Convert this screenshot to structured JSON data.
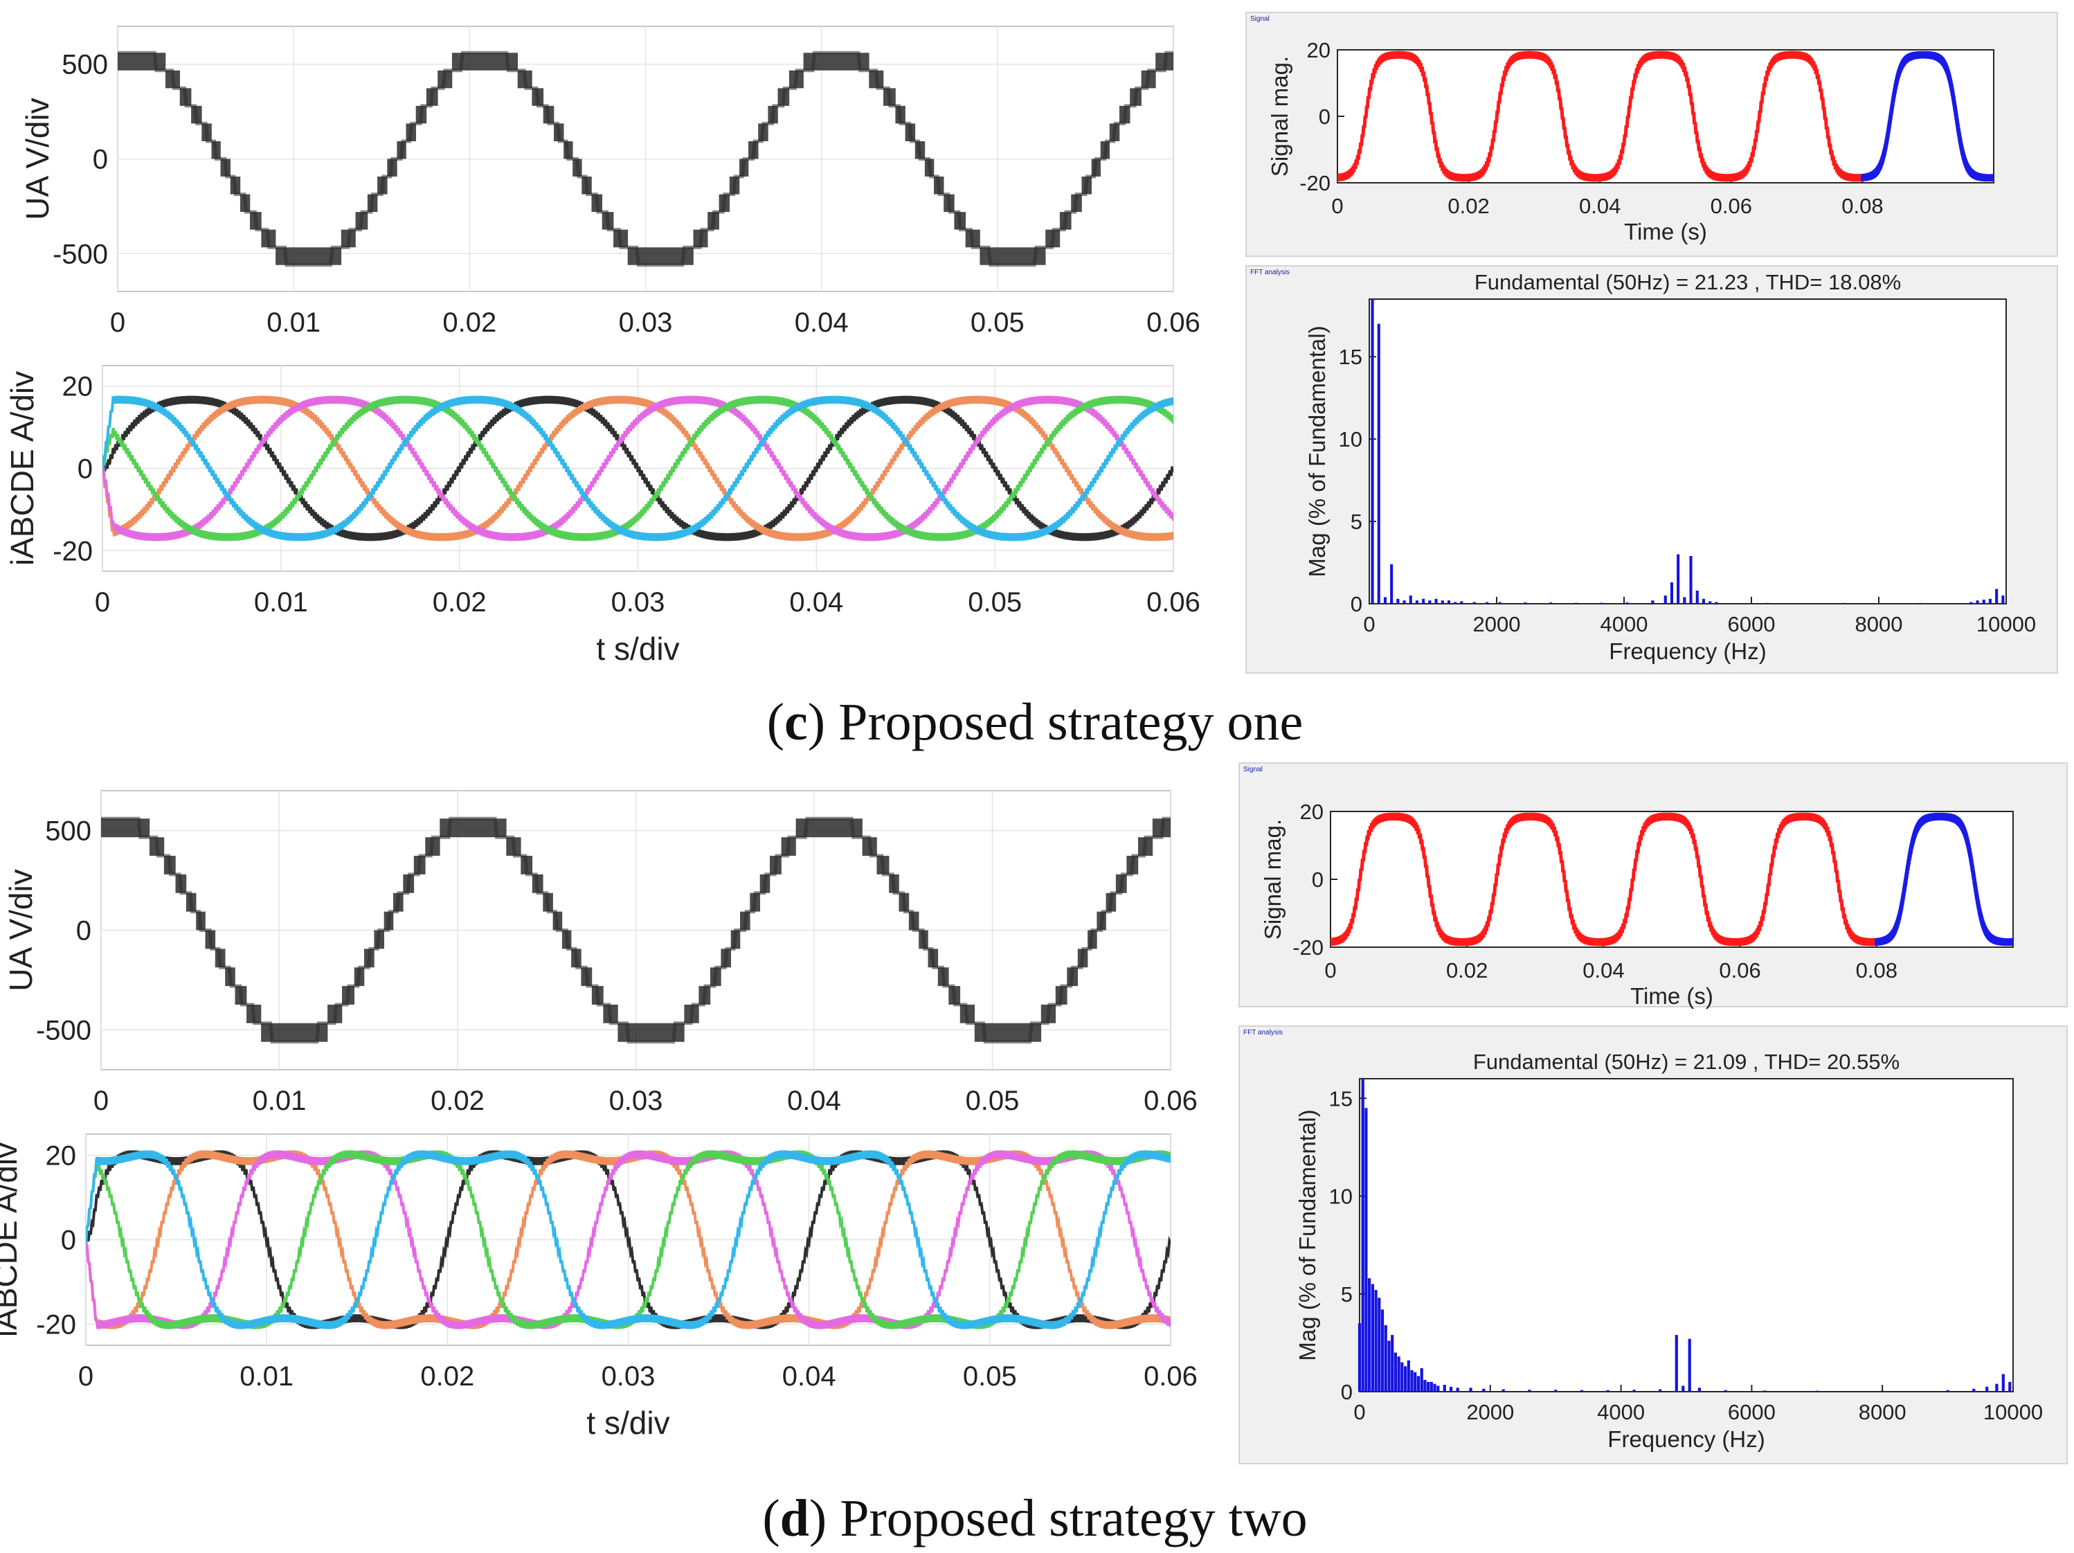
{
  "captions": [
    {
      "letter": "c",
      "text": " Proposed strategy one"
    },
    {
      "letter": "d",
      "text": " Proposed strategy two"
    }
  ],
  "chart_data": [
    {
      "type": "line",
      "panel": "c-voltage",
      "ylabel": "UA V/div",
      "xlim": [
        0,
        0.06
      ],
      "ylim": [
        -700,
        700
      ],
      "xticks": [
        "0",
        "0.01",
        "0.02",
        "0.03",
        "0.04",
        "0.05",
        "0.06"
      ],
      "yticks": [
        "500",
        "0",
        "-500"
      ],
      "yticks_values": [
        500,
        0,
        -500
      ],
      "series": [
        {
          "name": "UA",
          "color": "#2b2b2b",
          "amplitude": 560,
          "frequency_hz": 50,
          "levels": 6,
          "phase_start": 1.3
        }
      ]
    },
    {
      "type": "line",
      "panel": "c-currents",
      "ylabel": "iABCDE A/div",
      "xlabel": "t s/div",
      "xlim": [
        0,
        0.06
      ],
      "ylim": [
        -25,
        25
      ],
      "xticks": [
        "0",
        "0.01",
        "0.02",
        "0.03",
        "0.04",
        "0.05",
        "0.06"
      ],
      "yticks": [
        "20",
        "0",
        "-20"
      ],
      "yticks_values": [
        20,
        0,
        -20
      ],
      "series": [
        {
          "name": "iA",
          "color": "#303030",
          "amplitude": 18,
          "frequency_hz": 50,
          "phase_deg": 0
        },
        {
          "name": "iB",
          "color": "#ef8f5b",
          "amplitude": 18,
          "frequency_hz": 50,
          "phase_deg": -72
        },
        {
          "name": "iC",
          "color": "#e46ae4",
          "amplitude": 18,
          "frequency_hz": 50,
          "phase_deg": -144
        },
        {
          "name": "iD",
          "color": "#55d055",
          "amplitude": 18,
          "frequency_hz": 50,
          "phase_deg": -216
        },
        {
          "name": "iE",
          "color": "#33b7ea",
          "amplitude": 18,
          "frequency_hz": 50,
          "phase_deg": -288
        }
      ]
    },
    {
      "type": "line",
      "panel": "c-signal",
      "window_title": "Signal",
      "xlabel": "Time (s)",
      "ylabel": "Signal mag.",
      "xlim": [
        0,
        0.1
      ],
      "ylim": [
        -20,
        20
      ],
      "xticks": [
        "0",
        "0.02",
        "0.04",
        "0.06",
        "0.08"
      ],
      "xticks_values": [
        0,
        0.02,
        0.04,
        0.06,
        0.08
      ],
      "yticks": [
        "20",
        "0",
        "-20"
      ],
      "yticks_values": [
        20,
        0,
        -20
      ],
      "series": [
        {
          "name": "signal",
          "color": "#ff1a1a",
          "t_range": [
            0,
            0.08
          ]
        },
        {
          "name": "FFT window",
          "color": "#1a1ae6",
          "t_range": [
            0.08,
            0.1
          ]
        }
      ],
      "shape": "trapezoid"
    },
    {
      "type": "bar",
      "panel": "c-fft",
      "window_title": "FFT analysis",
      "title": "Fundamental (50Hz) = 21.23 , THD= 18.08%",
      "fundamental_hz": 50,
      "fundamental_mag": 21.23,
      "thd_percent": 18.08,
      "xlabel": "Frequency (Hz)",
      "ylabel": "Mag (% of Fundamental)",
      "xlim": [
        0,
        10000
      ],
      "ylim": [
        0,
        18.5
      ],
      "xticks": [
        "0",
        "2000",
        "4000",
        "6000",
        "8000",
        "10000"
      ],
      "xticks_values": [
        0,
        2000,
        4000,
        6000,
        8000,
        10000
      ],
      "yticks": [
        "15",
        "10",
        "5",
        "0"
      ],
      "yticks_values": [
        15,
        10,
        5,
        0
      ],
      "bars": [
        [
          50,
          18.5
        ],
        [
          150,
          17
        ],
        [
          250,
          0.4
        ],
        [
          350,
          2.4
        ],
        [
          450,
          0.3
        ],
        [
          550,
          0.2
        ],
        [
          650,
          0.5
        ],
        [
          750,
          0.2
        ],
        [
          850,
          0.3
        ],
        [
          950,
          0.2
        ],
        [
          1050,
          0.3
        ],
        [
          1150,
          0.2
        ],
        [
          1250,
          0.2
        ],
        [
          1350,
          0.1
        ],
        [
          1450,
          0.15
        ],
        [
          1650,
          0.1
        ],
        [
          1850,
          0.1
        ],
        [
          2050,
          0.1
        ],
        [
          2450,
          0.08
        ],
        [
          2850,
          0.08
        ],
        [
          3250,
          0.06
        ],
        [
          3650,
          0.06
        ],
        [
          4050,
          0.08
        ],
        [
          4450,
          0.2
        ],
        [
          4650,
          0.5
        ],
        [
          4750,
          1.3
        ],
        [
          4850,
          3.0
        ],
        [
          4950,
          0.4
        ],
        [
          5050,
          2.9
        ],
        [
          5150,
          0.8
        ],
        [
          5250,
          0.3
        ],
        [
          5350,
          0.15
        ],
        [
          5450,
          0.1
        ],
        [
          6250,
          0.05
        ],
        [
          7450,
          0.05
        ],
        [
          8650,
          0.05
        ],
        [
          9450,
          0.1
        ],
        [
          9550,
          0.2
        ],
        [
          9650,
          0.25
        ],
        [
          9750,
          0.3
        ],
        [
          9850,
          0.9
        ],
        [
          9950,
          0.5
        ]
      ]
    },
    {
      "type": "line",
      "panel": "d-voltage",
      "ylabel": "UA V/div",
      "xlim": [
        0,
        0.06
      ],
      "ylim": [
        -700,
        700
      ],
      "xticks": [
        "0",
        "0.01",
        "0.02",
        "0.03",
        "0.04",
        "0.05",
        "0.06"
      ],
      "yticks": [
        "500",
        "0",
        "-500"
      ],
      "yticks_values": [
        500,
        0,
        -500
      ],
      "series": [
        {
          "name": "UA",
          "color": "#2b2b2b",
          "amplitude": 560,
          "frequency_hz": 50,
          "levels": 6,
          "phase_start": 1.3
        }
      ]
    },
    {
      "type": "line",
      "panel": "d-currents",
      "ylabel": "iABCDE A/div",
      "xlabel": "t s/div",
      "xlim": [
        0,
        0.06
      ],
      "ylim": [
        -25,
        25
      ],
      "xticks": [
        "0",
        "0.01",
        "0.02",
        "0.03",
        "0.04",
        "0.05",
        "0.06"
      ],
      "yticks": [
        "20",
        "0",
        "-20"
      ],
      "yticks_values": [
        20,
        0,
        -20
      ],
      "series": [
        {
          "name": "iA",
          "color": "#303030",
          "amplitude": 20,
          "frequency_hz": 50,
          "phase_deg": 0
        },
        {
          "name": "iB",
          "color": "#ef8f5b",
          "amplitude": 20,
          "frequency_hz": 50,
          "phase_deg": -72
        },
        {
          "name": "iC",
          "color": "#e46ae4",
          "amplitude": 20,
          "frequency_hz": 50,
          "phase_deg": -144
        },
        {
          "name": "iD",
          "color": "#55d055",
          "amplitude": 20,
          "frequency_hz": 50,
          "phase_deg": -216
        },
        {
          "name": "iE",
          "color": "#33b7ea",
          "amplitude": 20,
          "frequency_hz": 50,
          "phase_deg": -288
        }
      ],
      "shape": "flat-topped"
    },
    {
      "type": "line",
      "panel": "d-signal",
      "window_title": "Signal",
      "xlabel": "Time (s)",
      "ylabel": "Signal mag.",
      "xlim": [
        0,
        0.1
      ],
      "ylim": [
        -20,
        20
      ],
      "xticks": [
        "0",
        "0.02",
        "0.04",
        "0.06",
        "0.08"
      ],
      "xticks_values": [
        0,
        0.02,
        0.04,
        0.06,
        0.08
      ],
      "yticks": [
        "20",
        "0",
        "-20"
      ],
      "yticks_values": [
        20,
        0,
        -20
      ],
      "series": [
        {
          "name": "signal",
          "color": "#ff1a1a",
          "t_range": [
            0,
            0.08
          ]
        },
        {
          "name": "FFT window",
          "color": "#1a1ae6",
          "t_range": [
            0.08,
            0.1
          ]
        }
      ],
      "shape": "trapezoid"
    },
    {
      "type": "bar",
      "panel": "d-fft",
      "window_title": "FFT analysis",
      "title": "Fundamental (50Hz) = 21.09 , THD= 20.55%",
      "fundamental_hz": 50,
      "fundamental_mag": 21.09,
      "thd_percent": 20.55,
      "xlabel": "Frequency (Hz)",
      "ylabel": "Mag (% of Fundamental)",
      "xlim": [
        0,
        10000
      ],
      "ylim": [
        0,
        16
      ],
      "xticks": [
        "0",
        "2000",
        "4000",
        "6000",
        "8000",
        "10000"
      ],
      "xticks_values": [
        0,
        2000,
        4000,
        6000,
        8000,
        10000
      ],
      "yticks": [
        "15",
        "10",
        "5",
        "0"
      ],
      "yticks_values": [
        15,
        10,
        5,
        0
      ],
      "bars": [
        [
          0,
          3.5
        ],
        [
          50,
          16
        ],
        [
          100,
          14.5
        ],
        [
          150,
          5.8
        ],
        [
          200,
          5.5
        ],
        [
          250,
          5.2
        ],
        [
          300,
          4.8
        ],
        [
          350,
          4.2
        ],
        [
          400,
          3.4
        ],
        [
          450,
          2.6
        ],
        [
          500,
          2.9
        ],
        [
          550,
          2.0
        ],
        [
          600,
          1.8
        ],
        [
          650,
          1.5
        ],
        [
          700,
          1.3
        ],
        [
          750,
          1.6
        ],
        [
          800,
          1.1
        ],
        [
          850,
          1.0
        ],
        [
          900,
          0.8
        ],
        [
          950,
          1.2
        ],
        [
          1000,
          0.6
        ],
        [
          1050,
          0.5
        ],
        [
          1100,
          0.5
        ],
        [
          1150,
          0.4
        ],
        [
          1200,
          0.3
        ],
        [
          1300,
          0.35
        ],
        [
          1400,
          0.25
        ],
        [
          1500,
          0.2
        ],
        [
          1700,
          0.2
        ],
        [
          1900,
          0.15
        ],
        [
          2200,
          0.12
        ],
        [
          2600,
          0.1
        ],
        [
          3000,
          0.1
        ],
        [
          3400,
          0.08
        ],
        [
          3800,
          0.08
        ],
        [
          4200,
          0.1
        ],
        [
          4600,
          0.12
        ],
        [
          4850,
          2.9
        ],
        [
          4950,
          0.3
        ],
        [
          5050,
          2.7
        ],
        [
          5200,
          0.2
        ],
        [
          5600,
          0.08
        ],
        [
          6200,
          0.06
        ],
        [
          7000,
          0.05
        ],
        [
          8000,
          0.05
        ],
        [
          9000,
          0.08
        ],
        [
          9400,
          0.15
        ],
        [
          9600,
          0.25
        ],
        [
          9750,
          0.4
        ],
        [
          9850,
          0.9
        ],
        [
          9950,
          0.5
        ]
      ]
    }
  ]
}
